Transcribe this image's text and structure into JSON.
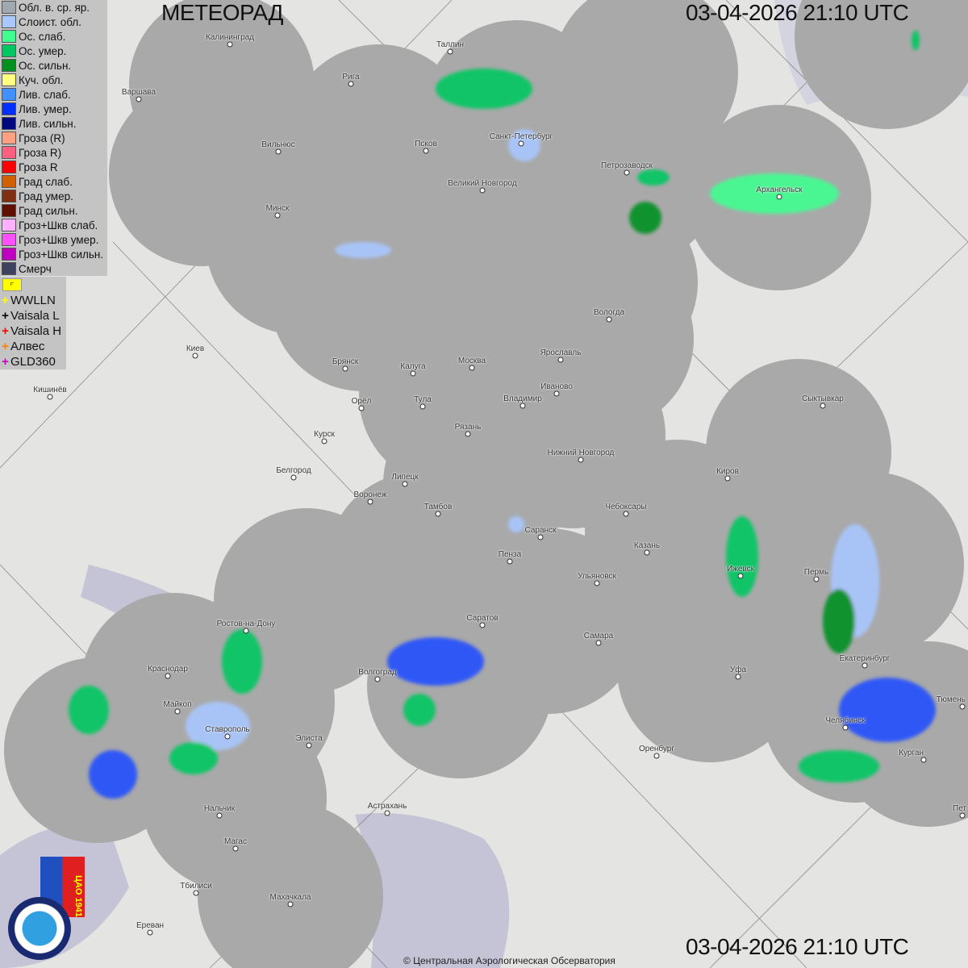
{
  "header": {
    "title": "МЕТЕОРАД",
    "datetime_top": "03-04-2026  21:10 UTC",
    "datetime_bottom": "03-04-2026  21:10 UTC"
  },
  "legend": [
    {
      "label": "Обл. в. ср. яр.",
      "color": "#a0a8b0"
    },
    {
      "label": "Слоист. обл.",
      "color": "#a8c8ff"
    },
    {
      "label": "Ос. слаб.",
      "color": "#40ff90"
    },
    {
      "label": "Ос. умер.",
      "color": "#00c860"
    },
    {
      "label": "Ос. сильн.",
      "color": "#009020"
    },
    {
      "label": "Куч. обл.",
      "color": "#ffff80"
    },
    {
      "label": "Лив. слаб.",
      "color": "#4090ff"
    },
    {
      "label": "Лив. умер.",
      "color": "#0030ff"
    },
    {
      "label": "Лив. сильн.",
      "color": "#000880"
    },
    {
      "label": "Гроза (R)",
      "color": "#ffa080"
    },
    {
      "label": "Гроза R)",
      "color": "#ff6080"
    },
    {
      "label": "Гроза R",
      "color": "#ff0000"
    },
    {
      "label": "Град слаб.",
      "color": "#d06000"
    },
    {
      "label": "Град умер.",
      "color": "#803010"
    },
    {
      "label": "Град сильн.",
      "color": "#601000"
    },
    {
      "label": "Гроз+Шкв слаб.",
      "color": "#ffb0ff"
    },
    {
      "label": "Гроз+Шкв умер.",
      "color": "#ff50ff"
    },
    {
      "label": "Гроз+Шкв сильн.",
      "color": "#c000c0"
    },
    {
      "label": "Смерч",
      "color": "#404060"
    }
  ],
  "lightning_flag_icon": "flag-icon",
  "lightning": [
    {
      "label": "WWLLN",
      "color": "#ffff00"
    },
    {
      "label": "Vaisala L",
      "color": "#000000"
    },
    {
      "label": "Vaisala H",
      "color": "#ff0000"
    },
    {
      "label": "Алвес",
      "color": "#ff8000"
    },
    {
      "label": "GLD360",
      "color": "#c000c0"
    }
  ],
  "cities": [
    "Калининград",
    "Таллин",
    "Рига",
    "Варшава",
    "Санкт-Петербург",
    "Псков",
    "Вильнюс",
    "Великий Новгород",
    "Петрозаводск",
    "Архангельск",
    "Минск",
    "Вологда",
    "Киев",
    "Брянск",
    "Калуга",
    "Москва",
    "Ярославль",
    "Иваново",
    "Кишинёв",
    "Орёл",
    "Тула",
    "Владимир",
    "Сыктывкар",
    "Рязань",
    "Курск",
    "Нижний Новгород",
    "Белгород",
    "Липецк",
    "Киров",
    "Воронеж",
    "Тамбов",
    "Чебоксары",
    "Саранск",
    "Пенза",
    "Казань",
    "Пермь",
    "Ижевск",
    "Ульяновск",
    "Ростов-на-Дону",
    "Саратов",
    "Самара",
    "Краснодар",
    "Екатеринбург",
    "Волгоград",
    "Уфа",
    "Майкоп",
    "Тюмень",
    "Челябинск",
    "Ставрополь",
    "Элиста",
    "Оренбург",
    "Курган",
    "Астрахань",
    "Нальчик",
    "Магас",
    "Тбилиси",
    "Махачкала",
    "Ереван",
    "Пет"
  ],
  "logos": {
    "cao": "ЦАО 1941",
    "roshydromet": "РОСГИДРОМЕТ ROSHYDROMET"
  },
  "copyright": "© Центральная Аэрологическая Обсерватория"
}
